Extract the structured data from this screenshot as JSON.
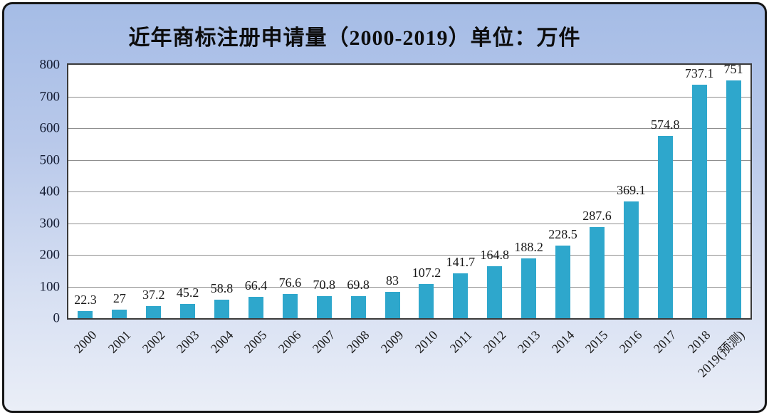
{
  "window": {
    "background_top_color": "#a5bce6",
    "background_bottom_color": "#eaeef7",
    "border_color": "#161616"
  },
  "chart_data": {
    "type": "bar",
    "title": "近年商标注册申请量（2000-2019）单位：万件",
    "unit": "万件",
    "categories": [
      "2000",
      "2001",
      "2002",
      "2003",
      "2004",
      "2005",
      "2006",
      "2007",
      "2008",
      "2009",
      "2010",
      "2011",
      "2012",
      "2013",
      "2014",
      "2015",
      "2016",
      "2017",
      "2018",
      "2019(预测)"
    ],
    "values": [
      22.3,
      27,
      37.2,
      45.2,
      58.8,
      66.4,
      76.6,
      70.8,
      69.8,
      83,
      107.2,
      141.7,
      164.8,
      188.2,
      228.5,
      287.6,
      369.1,
      574.8,
      737.1,
      751
    ],
    "value_labels": [
      "22.3",
      "27",
      "37.2",
      "45.2",
      "58.8",
      "66.4",
      "76.6",
      "70.8",
      "69.8",
      "83",
      "107.2",
      "141.7",
      "164.8",
      "188.2",
      "228.5",
      "287.6",
      "369.1",
      "574.8",
      "737.1",
      "751"
    ],
    "xlabel": "",
    "ylabel": "",
    "ylim": [
      0,
      800
    ],
    "yticks": [
      0,
      100,
      200,
      300,
      400,
      500,
      600,
      700,
      800
    ],
    "grid": true,
    "legend": "none",
    "bar_color": "#2ea7cc",
    "plot_background": "#ffffff",
    "gridline_color": "#8f8f8f"
  }
}
